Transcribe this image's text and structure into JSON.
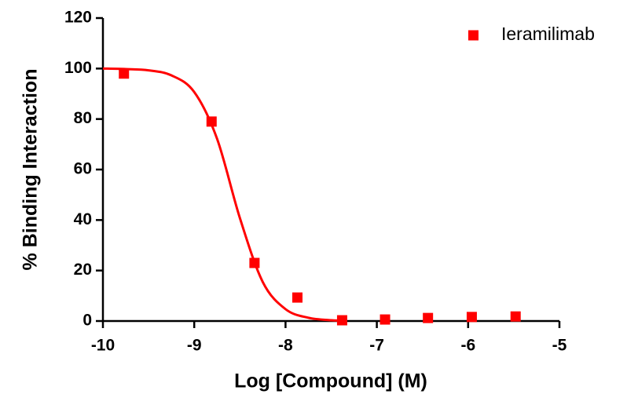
{
  "chart_data": {
    "type": "scatter",
    "xlabel": "Log [Compound] (M)",
    "ylabel": "% Binding Interaction",
    "xlim": [
      -10,
      -5
    ],
    "xticks": [
      -10,
      -9,
      -8,
      -7,
      -6,
      -5
    ],
    "ylim": [
      0,
      120
    ],
    "yticks": [
      0,
      20,
      40,
      60,
      80,
      100,
      120
    ],
    "legend": "upper right",
    "series": [
      {
        "name": "Ieramilimab",
        "color": "#ff0000",
        "marker": "square",
        "x": [
          -9.77,
          -8.81,
          -8.34,
          -7.87,
          -7.38,
          -6.91,
          -6.44,
          -5.96,
          -5.48
        ],
        "values": [
          98,
          79,
          23,
          9.3,
          0.3,
          0.6,
          1.2,
          1.6,
          1.8
        ]
      },
      {
        "color": "#ff0000",
        "marker": "line",
        "x": [
          -10,
          -9.75,
          -9.5,
          -9.25,
          -9,
          -8.75,
          -8.5,
          -8.25,
          -8,
          -7.75,
          -7.5,
          -7.4
        ],
        "values": [
          100,
          99.8,
          99.3,
          97.3,
          90.7,
          72.2,
          40.8,
          15.5,
          4.7,
          1.3,
          0.3,
          0.2
        ]
      }
    ]
  }
}
